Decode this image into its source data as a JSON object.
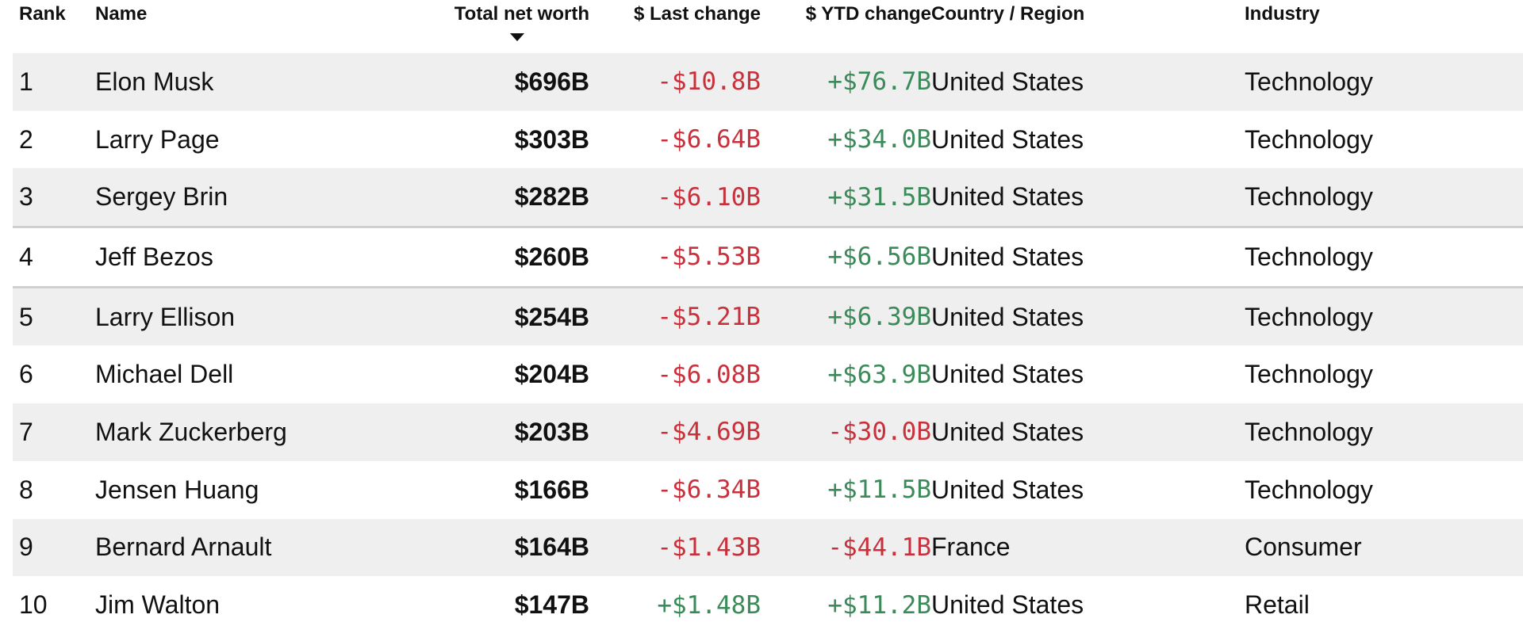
{
  "table": {
    "headers": [
      "Rank",
      "Name",
      "Total net worth",
      "$ Last change",
      "$ YTD change",
      "Country / Region",
      "Industry"
    ],
    "rows": [
      [
        "1",
        "Elon Musk",
        "$696B",
        "-$10.8B",
        "+$76.7B",
        "United States",
        "Technology"
      ],
      [
        "2",
        "Larry Page",
        "$303B",
        "-$6.64B",
        "+$34.0B",
        "United States",
        "Technology"
      ],
      [
        "3",
        "Sergey Brin",
        "$282B",
        "-$6.10B",
        "+$31.5B",
        "United States",
        "Technology"
      ],
      [
        "4",
        "Jeff Bezos",
        "$260B",
        "-$5.53B",
        "+$6.56B",
        "United States",
        "Technology"
      ],
      [
        "5",
        "Larry Ellison",
        "$254B",
        "-$5.21B",
        "+$6.39B",
        "United States",
        "Technology"
      ],
      [
        "6",
        "Michael Dell",
        "$204B",
        "-$6.08B",
        "+$63.9B",
        "United States",
        "Technology"
      ],
      [
        "7",
        "Mark Zuckerberg",
        "$203B",
        "-$4.69B",
        "-$30.0B",
        "United States",
        "Technology"
      ],
      [
        "8",
        "Jensen Huang",
        "$166B",
        "-$6.34B",
        "+$11.5B",
        "United States",
        "Technology"
      ],
      [
        "9",
        "Bernard Arnault",
        "$164B",
        "-$1.43B",
        "-$44.1B",
        "France",
        "Consumer"
      ],
      [
        "10",
        "Jim Walton",
        "$147B",
        "+$1.48B",
        "+$11.2B",
        "United States",
        "Retail"
      ]
    ]
  }
}
